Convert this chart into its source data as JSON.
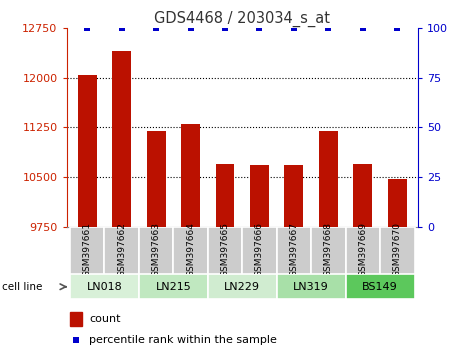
{
  "title": "GDS4468 / 203034_s_at",
  "samples": [
    "GSM397661",
    "GSM397662",
    "GSM397663",
    "GSM397664",
    "GSM397665",
    "GSM397666",
    "GSM397667",
    "GSM397668",
    "GSM397669",
    "GSM397670"
  ],
  "counts": [
    12050,
    12400,
    11200,
    11300,
    10700,
    10680,
    10680,
    11200,
    10700,
    10470
  ],
  "percentile_ranks": [
    100,
    100,
    100,
    100,
    100,
    100,
    100,
    100,
    100,
    100
  ],
  "cell_lines": [
    {
      "name": "LN018",
      "start": 0,
      "end": 2,
      "color": "#d8f0d8"
    },
    {
      "name": "LN215",
      "start": 2,
      "end": 4,
      "color": "#c0e8c0"
    },
    {
      "name": "LN229",
      "start": 4,
      "end": 6,
      "color": "#d0ecd0"
    },
    {
      "name": "LN319",
      "start": 6,
      "end": 8,
      "color": "#a8e0a8"
    },
    {
      "name": "BS149",
      "start": 8,
      "end": 10,
      "color": "#5cc85c"
    }
  ],
  "ylim_left": [
    9750,
    12750
  ],
  "ylim_right": [
    0,
    100
  ],
  "yticks_left": [
    9750,
    10500,
    11250,
    12000,
    12750
  ],
  "yticks_right": [
    0,
    25,
    50,
    75,
    100
  ],
  "bar_color": "#bb1100",
  "percentile_color": "#0000cc",
  "title_color": "#333333",
  "left_tick_color": "#cc2200",
  "right_tick_color": "#0000cc",
  "bar_bottom": 9750
}
